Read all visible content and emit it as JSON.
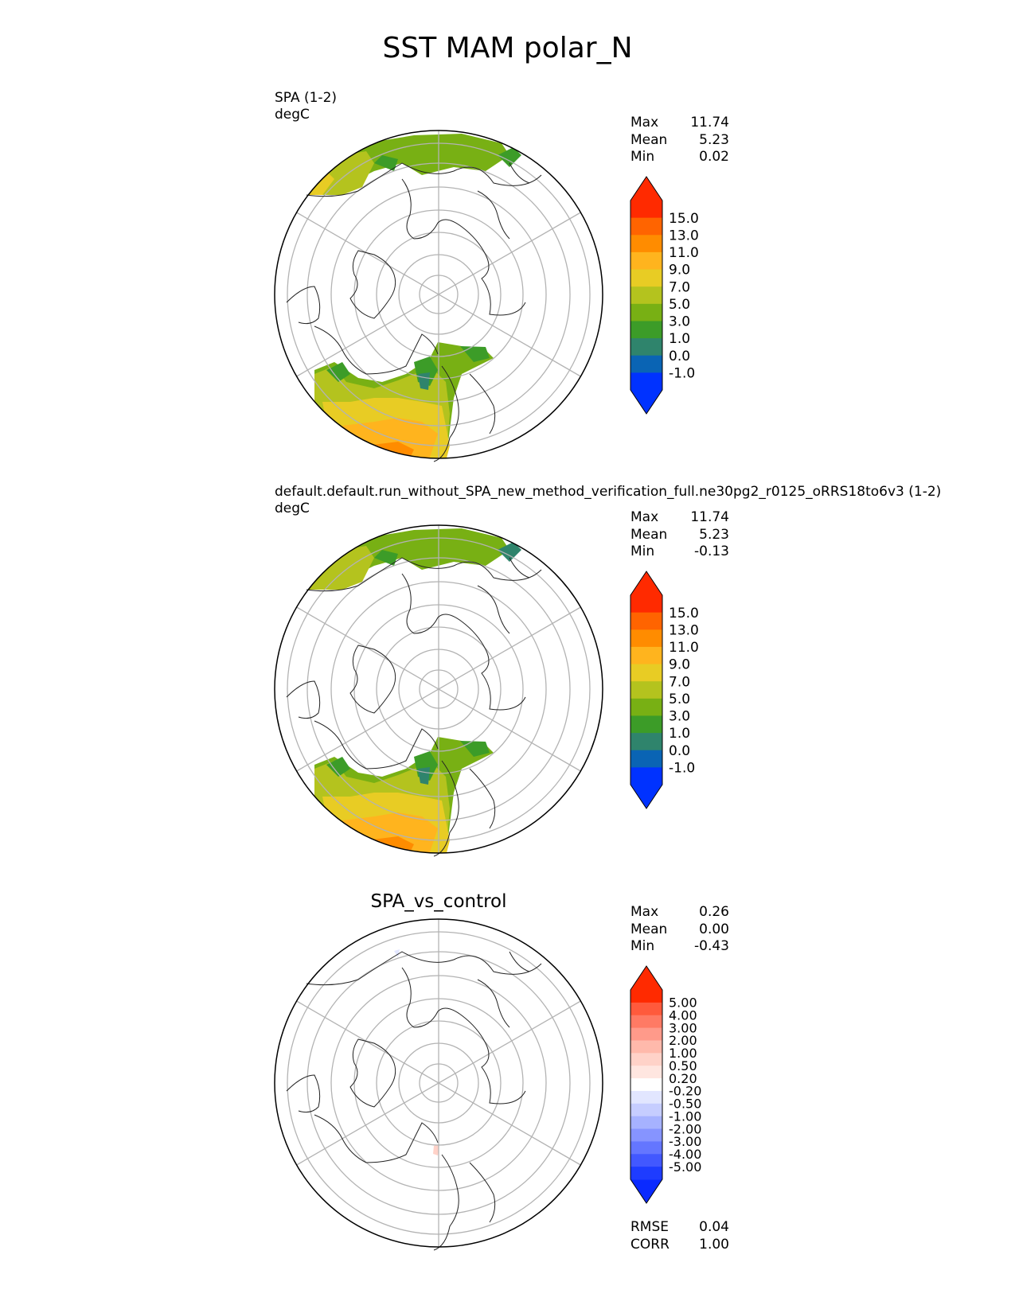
{
  "title": "SST MAM polar_N",
  "panels": [
    {
      "label": "SPA (1-2)",
      "units": "degC",
      "stats": [
        {
          "name": "Max",
          "value": "11.74"
        },
        {
          "name": "Mean",
          "value": "5.23"
        },
        {
          "name": "Min",
          "value": "0.02"
        }
      ]
    },
    {
      "label": "default.default.run_without_SPA_new_method_verification_full.ne30pg2_r0125_oRRS18to6v3 (1-2)",
      "units": "degC",
      "stats": [
        {
          "name": "Max",
          "value": "11.74"
        },
        {
          "name": "Mean",
          "value": "5.23"
        },
        {
          "name": "Min",
          "value": "-0.13"
        }
      ]
    },
    {
      "label": "SPA_vs_control",
      "stats": [
        {
          "name": "Max",
          "value": "0.26"
        },
        {
          "name": "Mean",
          "value": "0.00"
        },
        {
          "name": "Min",
          "value": "-0.43"
        }
      ],
      "metrics": [
        {
          "name": "RMSE",
          "value": "0.04"
        },
        {
          "name": "CORR",
          "value": "1.00"
        }
      ]
    }
  ],
  "colorbars": {
    "sst": {
      "ticks": [
        "15.0",
        "13.0",
        "11.0",
        "9.0",
        "7.0",
        "5.0",
        "3.0",
        "1.0",
        "0.0",
        "-1.0"
      ],
      "colors_top_to_bottom": [
        "#ff2a00",
        "#ff6400",
        "#ff8c00",
        "#ffb41e",
        "#e8cc24",
        "#b4c31e",
        "#78b014",
        "#3c9c28",
        "#2f846c",
        "#0a64b4",
        "#0032ff"
      ],
      "extend_top_color": "#ff2a00",
      "extend_bottom_color": "#0032ff"
    },
    "diff": {
      "ticks": [
        "5.00",
        "4.00",
        "3.00",
        "2.00",
        "1.00",
        "0.50",
        "0.20",
        "-0.20",
        "-0.50",
        "-1.00",
        "-2.00",
        "-3.00",
        "-4.00",
        "-5.00"
      ],
      "colors_top_to_bottom": [
        "#ff2a00",
        "#ff5a3c",
        "#ff7a64",
        "#ff9a8a",
        "#ffb9ab",
        "#ffd2c8",
        "#ffe6e0",
        "#ffffff",
        "#e2e6ff",
        "#c6cdff",
        "#a6b2ff",
        "#8694ff",
        "#6476ff",
        "#4258ff",
        "#1e3cff"
      ],
      "extend_top_color": "#ff2a00",
      "extend_bottom_color": "#0a2aff"
    }
  },
  "chart_data": [
    {
      "type": "map",
      "projection": "north-polar-stereographic",
      "field": "SST",
      "units": "degC",
      "max": 11.74,
      "mean": 5.23,
      "min": 0.02
    },
    {
      "type": "map",
      "projection": "north-polar-stereographic",
      "field": "SST",
      "units": "degC",
      "max": 11.74,
      "mean": 5.23,
      "min": -0.13
    },
    {
      "type": "map",
      "projection": "north-polar-stereographic",
      "field": "SST difference",
      "max": 0.26,
      "mean": 0.0,
      "min": -0.43,
      "rmse": 0.04,
      "corr": 1.0
    }
  ]
}
